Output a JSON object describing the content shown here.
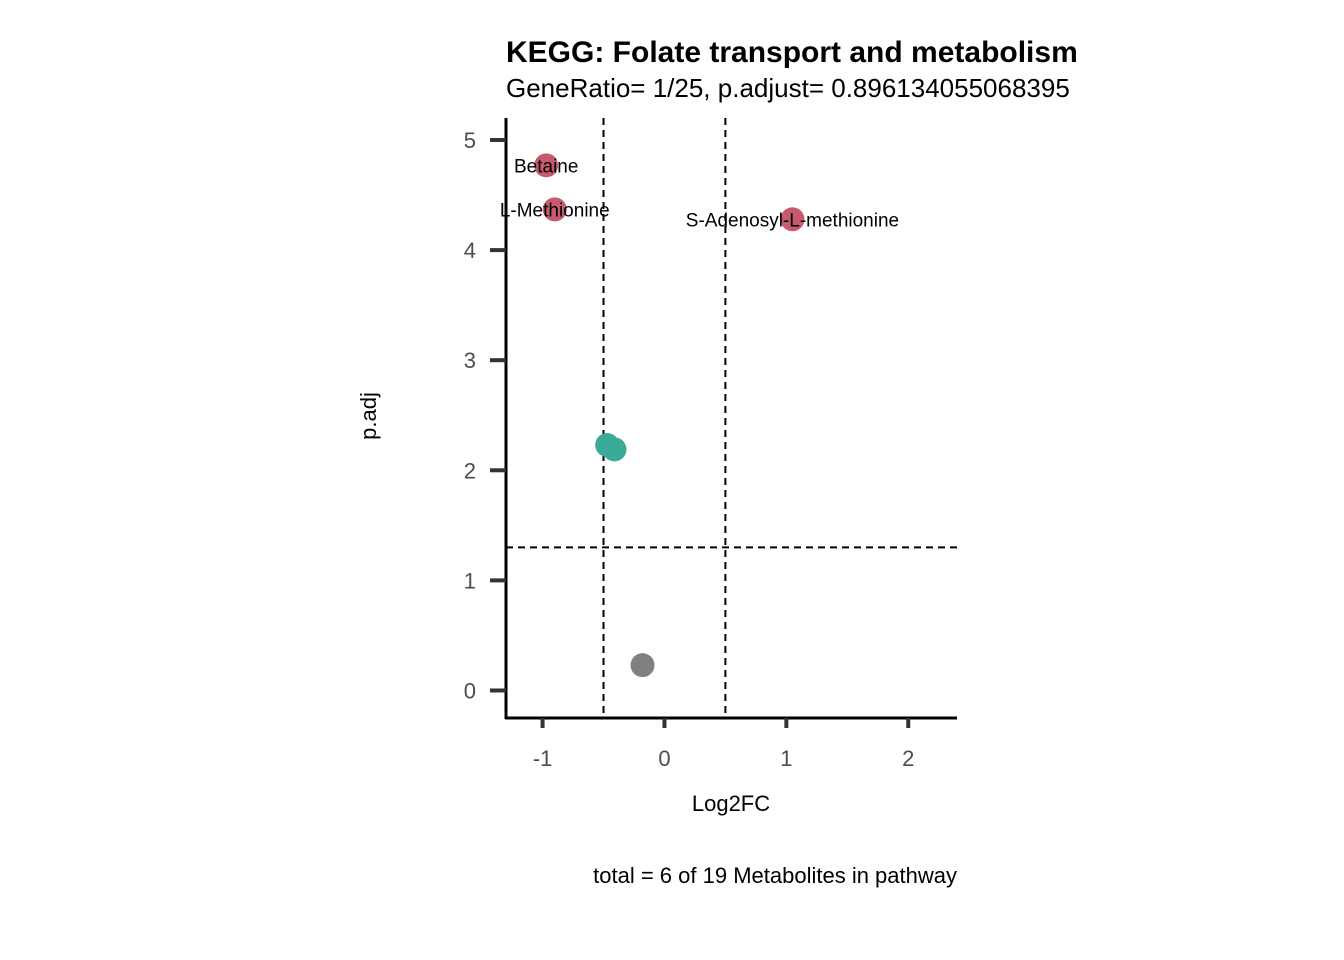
{
  "chart_data": {
    "type": "scatter",
    "title": "KEGG: Folate transport and metabolism",
    "subtitle": "GeneRatio= 1/25, p.adjust= 0.896134055068395",
    "xlabel": "Log2FC",
    "ylabel": "p.adj",
    "caption": "total = 6 of 19 Metabolites in pathway",
    "xlim": [
      -1.3,
      2.4
    ],
    "ylim": [
      -0.25,
      5.2
    ],
    "x_ticks": [
      -1,
      0,
      1,
      2
    ],
    "x_tick_labels": [
      "-1",
      "0",
      "1",
      "2"
    ],
    "y_ticks": [
      0,
      1,
      2,
      3,
      4,
      5
    ],
    "y_tick_labels": [
      "0",
      "1",
      "2",
      "3",
      "4",
      "5"
    ],
    "grid": false,
    "vlines": [
      -0.5,
      0.5
    ],
    "hline": 1.3,
    "colors": {
      "up": "#c75a6e",
      "down": "#3aab98",
      "ns": "#808080"
    },
    "points": [
      {
        "x": -0.97,
        "y": 4.77,
        "group": "up",
        "label": "Betaine"
      },
      {
        "x": -0.9,
        "y": 4.37,
        "group": "up",
        "label": "L-Methionine"
      },
      {
        "x": 1.05,
        "y": 4.28,
        "group": "up",
        "label": "S-Adenosyl-L-methionine"
      },
      {
        "x": -0.47,
        "y": 2.23,
        "group": "down",
        "label": ""
      },
      {
        "x": -0.41,
        "y": 2.19,
        "group": "down",
        "label": ""
      },
      {
        "x": -0.18,
        "y": 0.23,
        "group": "ns",
        "label": ""
      }
    ]
  }
}
